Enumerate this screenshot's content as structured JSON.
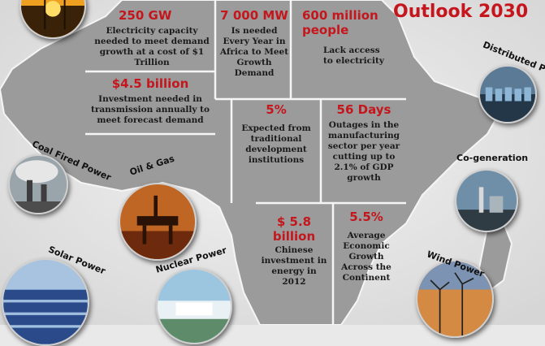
{
  "title": "Outlook 2030",
  "stats": [
    {
      "id": "capacity",
      "big": "250 GW",
      "text": "Electricity capacity needed to meet demand growth at a cost of $1 Trillion"
    },
    {
      "id": "mw",
      "big": "7 000 MW",
      "text": "Is needed Every Year in Africa to Meet Growth Demand"
    },
    {
      "id": "people",
      "big": "600 million people",
      "text": "Lack access to electricity"
    },
    {
      "id": "investment",
      "big": "$4.5 billion",
      "text": "Investment needed in transmission annually to meet forecast demand"
    },
    {
      "id": "traditional",
      "big": "5%",
      "text": "Expected from traditional development institutions"
    },
    {
      "id": "outages",
      "big": "56 Days",
      "text": "Outages in the manufacturing sector per year cutting up to 2.1% of GDP growth"
    },
    {
      "id": "chinese",
      "big": "$ 5.8 billion",
      "text": "Chinese investment in energy in 2012"
    },
    {
      "id": "growth",
      "big": "5.5%",
      "text": "Average Economic Growth Across the Continent"
    }
  ],
  "power_types": {
    "distributed": "Distributed Power",
    "coal": "Coal Fired Power",
    "oil_gas": "Oil & Gas",
    "cogeneration": "Co-generation",
    "solar": "Solar Power",
    "nuclear": "Nuclear Power",
    "wind": "Wind Power"
  },
  "colors": {
    "accent": "#c4161c",
    "map": "#9a9a9a",
    "background": "#e9e9e9"
  }
}
